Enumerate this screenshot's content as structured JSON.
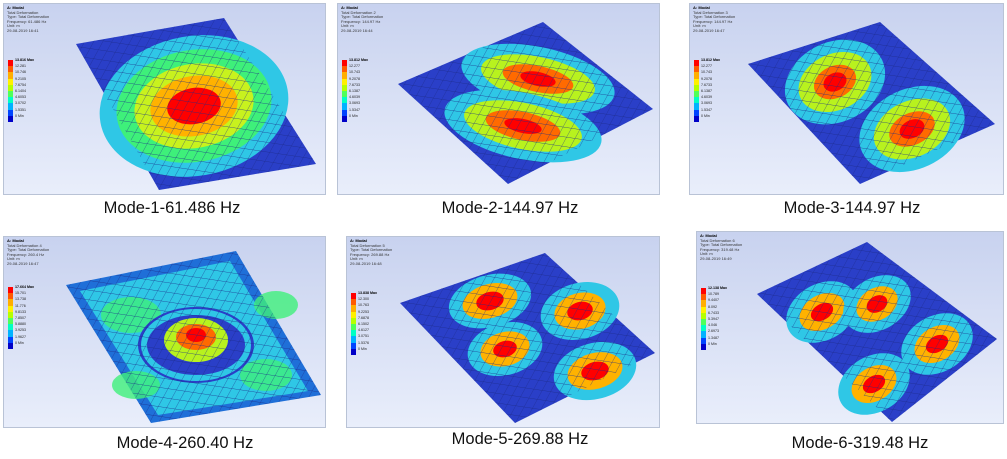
{
  "colors": {
    "legend": [
      "#ff0000",
      "#ff5a00",
      "#ffae00",
      "#fff000",
      "#b6ff00",
      "#4fff5a",
      "#00ffc4",
      "#00b2ff",
      "#0044ff",
      "#0000c8"
    ],
    "plate": "#2a3fc8",
    "mesh": "#1c2a88"
  },
  "modes": [
    {
      "header": [
        "A: Modal",
        "Total Deformation",
        "Type: Total Deformation",
        "Frequency: 61.486 Hz",
        "Unit: m",
        "29-08-2019 16:41"
      ],
      "max": "13.816 Max",
      "ticks": [
        "12.281",
        "10.746",
        "9.2105",
        "7.6754",
        "6.1404",
        "4.6053",
        "3.0702",
        "1.5351"
      ],
      "min": "0 Min",
      "caption": "Mode-1-61.486 Hz"
    },
    {
      "header": [
        "A: Modal",
        "Total Deformation 2",
        "Type: Total Deformation",
        "Frequency: 144.97 Hz",
        "Unit: m",
        "29-08-2019 16:44"
      ],
      "max": "13.812 Max",
      "ticks": [
        "12.277",
        "10.743",
        "9.2078",
        "7.6733",
        "6.1387",
        "4.6039",
        "3.0693",
        "1.5347"
      ],
      "min": "0 Min",
      "caption": "Mode-2-144.97 Hz"
    },
    {
      "header": [
        "A: Modal",
        "Total Deformation 3",
        "Type: Total Deformation",
        "Frequency: 144.97 Hz",
        "Unit: m",
        "29-08-2019 16:47"
      ],
      "max": "13.812 Max",
      "ticks": [
        "12.277",
        "10.743",
        "9.2078",
        "7.6733",
        "6.1387",
        "4.6039",
        "3.0693",
        "1.5347"
      ],
      "min": "0 Min",
      "caption": "Mode-3-144.97 Hz"
    },
    {
      "header": [
        "A: Modal",
        "Total Deformation 4",
        "Type: Total Deformation",
        "Frequency: 260.4 Hz",
        "Unit: m",
        "29-08-2019 16:47"
      ],
      "max": "17.664 Max",
      "ticks": [
        "15.701",
        "13.738",
        "11.776",
        "9.8133",
        "7.8507",
        "5.8880",
        "3.9253",
        "1.9627"
      ],
      "min": "0 Min",
      "caption": "Mode-4-260.40 Hz"
    },
    {
      "header": [
        "A: Modal",
        "Total Deformation 5",
        "Type: Total Deformation",
        "Frequency: 269.88 Hz",
        "Unit: m",
        "29-08-2019 16:48"
      ],
      "max": "13.838 Max",
      "ticks": [
        "12.300",
        "10.763",
        "9.2253",
        "7.6878",
        "6.1502",
        "4.6127",
        "3.0751",
        "1.5376"
      ],
      "min": "0 Min",
      "caption": "Mode-5-269.88 Hz"
    },
    {
      "header": [
        "A: Modal",
        "Total Deformation 6",
        "Type: Total Deformation",
        "Frequency: 319.48 Hz",
        "Unit: m",
        "29-08-2019 16:49"
      ],
      "max": "12.138 Max",
      "ticks": [
        "10.789",
        "9.4407",
        "8.092",
        "6.7433",
        "5.3947",
        "4.046",
        "2.6973",
        "1.3487"
      ],
      "min": "0 Min",
      "caption": "Mode-6-319.48 Hz"
    }
  ]
}
